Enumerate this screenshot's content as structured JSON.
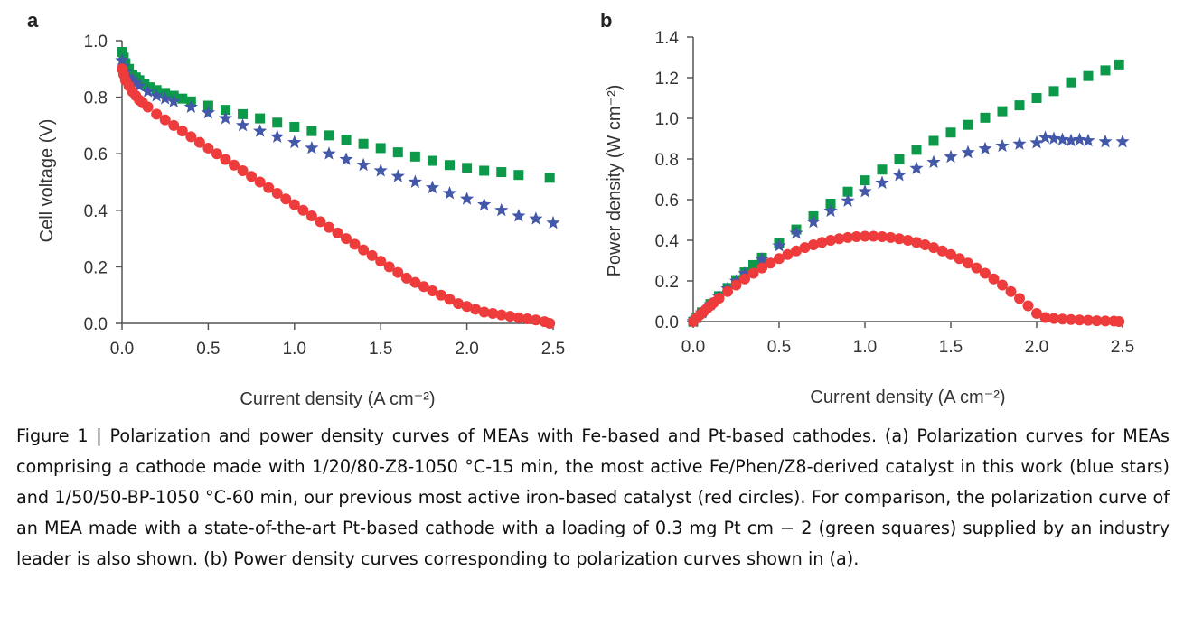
{
  "caption": "Figure 1 | Polarization and power density curves of MEAs with Fe-based and Pt-based cathodes. (a) Polarization curves for MEAs comprising a cathode made with 1/20/80-Z8-1050 °C-15 min, the most active Fe/Phen/Z8-derived catalyst in this work (blue stars) and 1/50/50-BP-1050 °C-60 min, our previous most active iron-based catalyst (red circles). For comparison, the polarization curve of an MEA made with a state-of-the-art Pt-based cathode with a loading of 0.3 mg Pt  cm  − 2  (green squares) supplied by an industry leader is also shown. (b) Power density curves corresponding to polarization curves shown in (a).",
  "colors": {
    "green": "#0c9a4a",
    "blue": "#4358a8",
    "red": "#ee3b3b",
    "axis": "#555555"
  },
  "chart_data": [
    {
      "panel_label": "a",
      "type": "scatter",
      "xlabel": "Current density (A cm⁻²)",
      "ylabel": "Cell voltage (V)",
      "xlim": [
        0.0,
        2.5
      ],
      "ylim": [
        0.0,
        1.0
      ],
      "xticks": [
        "0.0",
        "0.5",
        "1.0",
        "1.5",
        "2.0",
        "2.5"
      ],
      "yticks": [
        "0.0",
        "0.2",
        "0.4",
        "0.6",
        "0.8",
        "1.0"
      ],
      "grid": false,
      "series": [
        {
          "marker": "square",
          "color": "#0c9a4a",
          "x": [
            0.0,
            0.01,
            0.02,
            0.04,
            0.06,
            0.08,
            0.1,
            0.13,
            0.16,
            0.2,
            0.25,
            0.3,
            0.35,
            0.4,
            0.5,
            0.6,
            0.7,
            0.8,
            0.9,
            1.0,
            1.1,
            1.2,
            1.3,
            1.4,
            1.5,
            1.6,
            1.7,
            1.8,
            1.9,
            2.0,
            2.1,
            2.2,
            2.3,
            2.48
          ],
          "y": [
            0.96,
            0.94,
            0.92,
            0.9,
            0.88,
            0.87,
            0.86,
            0.845,
            0.835,
            0.825,
            0.815,
            0.805,
            0.795,
            0.785,
            0.77,
            0.755,
            0.74,
            0.725,
            0.71,
            0.695,
            0.68,
            0.665,
            0.65,
            0.635,
            0.62,
            0.605,
            0.59,
            0.575,
            0.56,
            0.55,
            0.54,
            0.535,
            0.525,
            0.515
          ]
        },
        {
          "marker": "star",
          "color": "#4358a8",
          "x": [
            0.0,
            0.01,
            0.02,
            0.04,
            0.06,
            0.08,
            0.1,
            0.15,
            0.2,
            0.25,
            0.3,
            0.4,
            0.5,
            0.6,
            0.7,
            0.8,
            0.9,
            1.0,
            1.1,
            1.2,
            1.3,
            1.4,
            1.5,
            1.6,
            1.7,
            1.8,
            1.9,
            2.0,
            2.1,
            2.2,
            2.3,
            2.4,
            2.5
          ],
          "y": [
            0.93,
            0.91,
            0.89,
            0.87,
            0.86,
            0.85,
            0.84,
            0.82,
            0.805,
            0.795,
            0.785,
            0.765,
            0.745,
            0.725,
            0.7,
            0.68,
            0.66,
            0.64,
            0.62,
            0.6,
            0.58,
            0.56,
            0.54,
            0.52,
            0.5,
            0.48,
            0.46,
            0.44,
            0.42,
            0.4,
            0.38,
            0.37,
            0.355
          ]
        },
        {
          "marker": "circle",
          "color": "#ee3b3b",
          "x": [
            0.0,
            0.01,
            0.02,
            0.04,
            0.06,
            0.08,
            0.1,
            0.12,
            0.15,
            0.2,
            0.25,
            0.3,
            0.35,
            0.4,
            0.45,
            0.5,
            0.55,
            0.6,
            0.65,
            0.7,
            0.75,
            0.8,
            0.85,
            0.9,
            0.95,
            1.0,
            1.05,
            1.1,
            1.15,
            1.2,
            1.25,
            1.3,
            1.35,
            1.4,
            1.45,
            1.5,
            1.55,
            1.6,
            1.65,
            1.7,
            1.75,
            1.8,
            1.85,
            1.9,
            1.95,
            2.0,
            2.05,
            2.1,
            2.15,
            2.2,
            2.25,
            2.3,
            2.35,
            2.4,
            2.45,
            2.48
          ],
          "y": [
            0.9,
            0.88,
            0.86,
            0.84,
            0.82,
            0.805,
            0.79,
            0.78,
            0.765,
            0.74,
            0.72,
            0.7,
            0.68,
            0.66,
            0.64,
            0.62,
            0.6,
            0.58,
            0.56,
            0.54,
            0.52,
            0.5,
            0.48,
            0.46,
            0.44,
            0.42,
            0.4,
            0.38,
            0.36,
            0.34,
            0.32,
            0.3,
            0.28,
            0.26,
            0.24,
            0.22,
            0.2,
            0.18,
            0.16,
            0.145,
            0.13,
            0.115,
            0.1,
            0.085,
            0.07,
            0.06,
            0.05,
            0.04,
            0.035,
            0.03,
            0.025,
            0.02,
            0.016,
            0.012,
            0.006,
            0.0
          ]
        }
      ]
    },
    {
      "panel_label": "b",
      "type": "scatter",
      "xlabel": "Current density (A cm⁻²)",
      "ylabel": "Power density (W cm⁻²)",
      "xlim": [
        0.0,
        2.5
      ],
      "ylim": [
        0.0,
        1.4
      ],
      "xticks": [
        "0.0",
        "0.5",
        "1.0",
        "1.5",
        "2.0",
        "2.5"
      ],
      "yticks": [
        "0.0",
        "0.2",
        "0.4",
        "0.6",
        "0.8",
        "1.0",
        "1.2",
        "1.4"
      ],
      "grid": false,
      "series": [
        {
          "marker": "square",
          "color": "#0c9a4a",
          "x": [
            0.0,
            0.02,
            0.05,
            0.1,
            0.15,
            0.2,
            0.25,
            0.3,
            0.35,
            0.4,
            0.5,
            0.6,
            0.7,
            0.8,
            0.9,
            1.0,
            1.1,
            1.2,
            1.3,
            1.4,
            1.5,
            1.6,
            1.7,
            1.8,
            1.9,
            2.0,
            2.1,
            2.2,
            2.3,
            2.4,
            2.48
          ],
          "y": [
            0.0,
            0.02,
            0.045,
            0.086,
            0.125,
            0.165,
            0.204,
            0.242,
            0.278,
            0.314,
            0.385,
            0.453,
            0.518,
            0.58,
            0.639,
            0.695,
            0.748,
            0.798,
            0.845,
            0.889,
            0.93,
            0.968,
            1.003,
            1.035,
            1.064,
            1.1,
            1.134,
            1.177,
            1.208,
            1.236,
            1.265
          ]
        },
        {
          "marker": "star",
          "color": "#4358a8",
          "x": [
            0.0,
            0.02,
            0.05,
            0.1,
            0.15,
            0.2,
            0.25,
            0.3,
            0.4,
            0.5,
            0.6,
            0.7,
            0.8,
            0.9,
            1.0,
            1.1,
            1.2,
            1.3,
            1.4,
            1.5,
            1.6,
            1.7,
            1.8,
            1.9,
            2.0,
            2.05,
            2.1,
            2.15,
            2.2,
            2.25,
            2.3,
            2.4,
            2.5
          ],
          "y": [
            0.0,
            0.018,
            0.044,
            0.084,
            0.123,
            0.161,
            0.199,
            0.236,
            0.306,
            0.373,
            0.435,
            0.49,
            0.544,
            0.594,
            0.64,
            0.682,
            0.72,
            0.754,
            0.784,
            0.81,
            0.832,
            0.85,
            0.864,
            0.874,
            0.88,
            0.905,
            0.9,
            0.895,
            0.89,
            0.895,
            0.89,
            0.885,
            0.885
          ]
        },
        {
          "marker": "circle",
          "color": "#ee3b3b",
          "x": [
            0.0,
            0.02,
            0.04,
            0.06,
            0.08,
            0.1,
            0.12,
            0.15,
            0.2,
            0.25,
            0.3,
            0.35,
            0.4,
            0.45,
            0.5,
            0.55,
            0.6,
            0.65,
            0.7,
            0.75,
            0.8,
            0.85,
            0.9,
            0.95,
            1.0,
            1.05,
            1.1,
            1.15,
            1.2,
            1.25,
            1.3,
            1.35,
            1.4,
            1.45,
            1.5,
            1.55,
            1.6,
            1.65,
            1.7,
            1.75,
            1.8,
            1.85,
            1.9,
            1.95,
            2.0,
            2.05,
            2.1,
            2.15,
            2.2,
            2.25,
            2.3,
            2.35,
            2.4,
            2.45,
            2.48
          ],
          "y": [
            0.0,
            0.017,
            0.034,
            0.049,
            0.064,
            0.079,
            0.094,
            0.115,
            0.148,
            0.18,
            0.21,
            0.238,
            0.264,
            0.288,
            0.31,
            0.33,
            0.348,
            0.364,
            0.378,
            0.39,
            0.4,
            0.408,
            0.414,
            0.418,
            0.42,
            0.42,
            0.418,
            0.414,
            0.408,
            0.4,
            0.39,
            0.378,
            0.364,
            0.348,
            0.33,
            0.31,
            0.288,
            0.264,
            0.238,
            0.21,
            0.18,
            0.148,
            0.114,
            0.078,
            0.04,
            0.02,
            0.015,
            0.012,
            0.01,
            0.008,
            0.006,
            0.004,
            0.003,
            0.002,
            0.0
          ]
        }
      ]
    }
  ]
}
